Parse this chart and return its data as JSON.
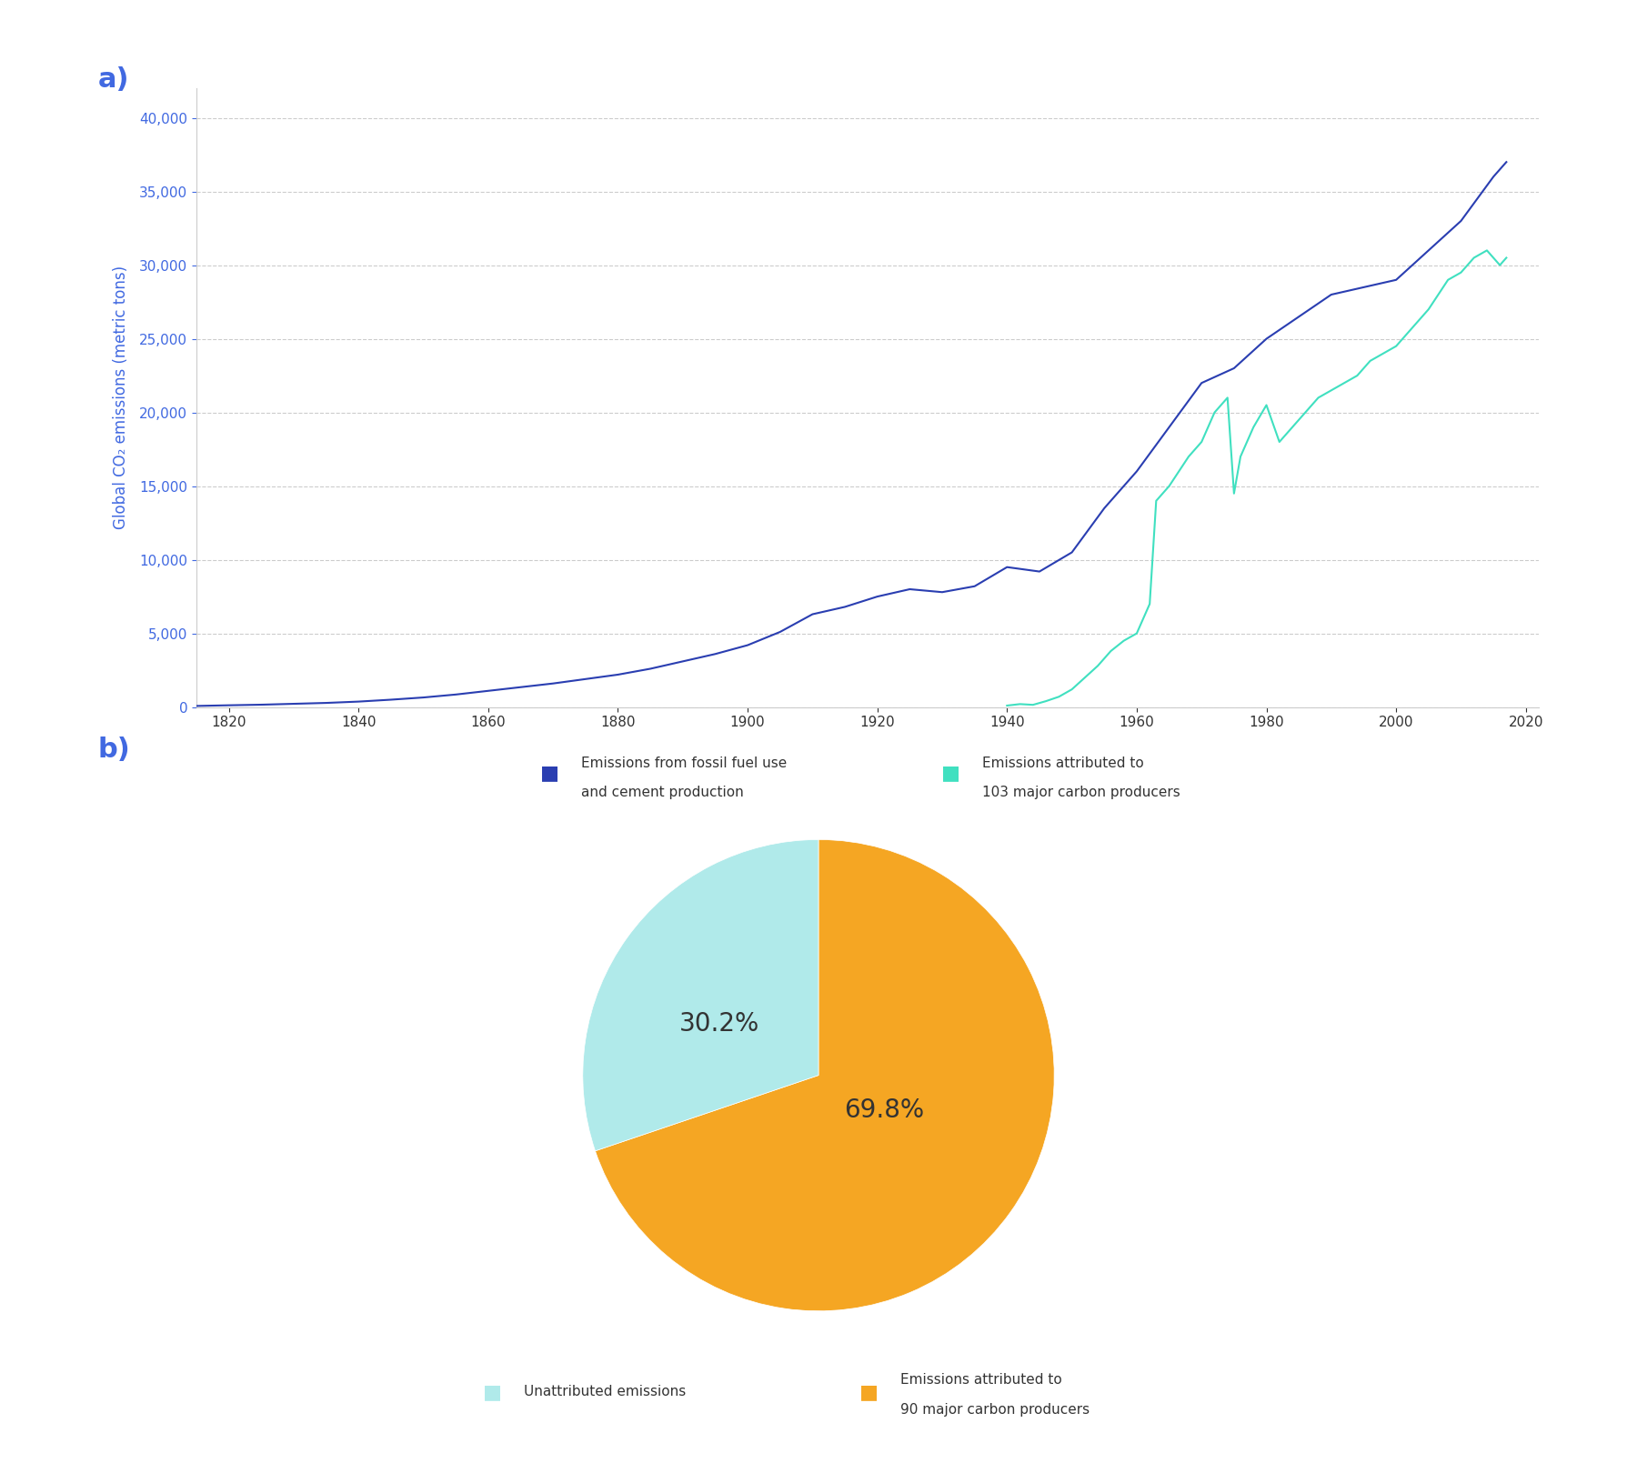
{
  "line_chart": {
    "title": "",
    "ylabel": "Global CO₂ emissions (metric tons)",
    "ylabel_color": "#4169e1",
    "xlabel": "",
    "xlim": [
      1815,
      2022
    ],
    "ylim": [
      0,
      42000
    ],
    "yticks": [
      0,
      5000,
      10000,
      15000,
      20000,
      25000,
      30000,
      35000,
      40000
    ],
    "ytick_labels": [
      "0",
      "5,000",
      "10,000",
      "15,000",
      "20,000",
      "25,000",
      "30,000",
      "35,000",
      "40,000"
    ],
    "xticks": [
      1820,
      1840,
      1860,
      1880,
      1900,
      1920,
      1940,
      1960,
      1980,
      2000,
      2020
    ],
    "grid_color": "#cccccc",
    "bg_color": "#f0f8ff",
    "plot_bg": "#ffffff",
    "fossil_color": "#2a3eb1",
    "carbon_color": "#40e0c0",
    "legend_fossil_label_line1": "Emissions from fossil fuel use",
    "legend_fossil_label_line2": "and cement production",
    "legend_carbon_label_line1": "Emissions attributed to",
    "legend_carbon_label_line2": "103 major carbon producers"
  },
  "pie_chart": {
    "values": [
      69.8,
      30.2
    ],
    "colors": [
      "#f5a623",
      "#b0eaea"
    ],
    "labels": [
      "69.8%",
      "30.2%"
    ],
    "start_angle": 90,
    "legend_label1": "Unattributed emissions",
    "legend_label2_line1": "Emissions attributed to",
    "legend_label2_line2": "90 major carbon producers"
  },
  "panel_a_label": "a)",
  "panel_b_label": "b)",
  "panel_label_color": "#4169e1",
  "panel_label_fontsize": 22
}
